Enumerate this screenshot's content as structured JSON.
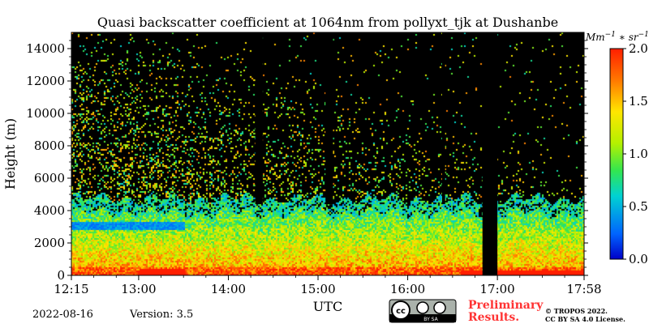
{
  "chart_data": {
    "type": "heatmap",
    "title": "Quasi backscatter coefficient at 1064nm from pollyxt_tjk at Dushanbe",
    "xlabel": "UTC",
    "ylabel": "Height (m)",
    "x_range": [
      "12:15",
      "17:58"
    ],
    "x_ticks": [
      "12:15",
      "13:00",
      "14:00",
      "15:00",
      "16:00",
      "17:00",
      "17:58"
    ],
    "ylim": [
      0,
      15000
    ],
    "y_ticks": [
      "0",
      "2000",
      "4000",
      "6000",
      "8000",
      "10000",
      "12000",
      "14000"
    ],
    "colorbar": {
      "label": "Mm^-1 * sr^-1",
      "range": [
        0.0,
        2.0
      ],
      "ticks": [
        "0.0",
        "0.5",
        "1.0",
        "1.5",
        "2.0"
      ],
      "colormap": "jet"
    },
    "features": {
      "boundary_layer_top_m": 4800,
      "aerosol_layer_m": [
        2800,
        3400
      ],
      "data_gaps_utc": [
        [
          "14:18",
          "14:23"
        ],
        [
          "15:05",
          "15:10"
        ],
        [
          "16:23",
          "16:25"
        ],
        [
          "16:50",
          "17:00"
        ]
      ]
    }
  },
  "footer": {
    "date": "2022-08-16",
    "version": "Version: 3.5",
    "cc_badge": "BY SA",
    "preliminary": "Preliminary",
    "results": "Results.",
    "copyright_1": "© TROPOS 2022.",
    "copyright_2": "CC BY SA 4.0 License."
  }
}
